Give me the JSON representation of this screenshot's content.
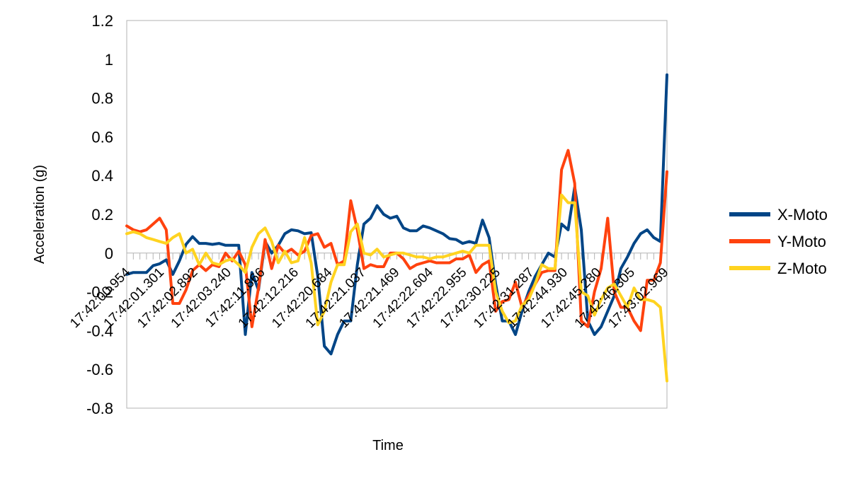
{
  "chart_data": {
    "type": "line",
    "xlabel": "Time",
    "ylabel": "Acceleration (g)",
    "ylim": [
      -0.8,
      1.2
    ],
    "yticks": [
      "1.2",
      "1",
      "0.8",
      "0.6",
      "0.4",
      "0.2",
      "0",
      "-0.2",
      "-0.4",
      "-0.6",
      "-0.8"
    ],
    "x_tick_labels": [
      "17:42:00.954",
      "17:42:01.301",
      "17:42:02.892",
      "17:42:03.240",
      "17:42:11.866",
      "17:42:12.216",
      "17:42:20.684",
      "17:42:21.037",
      "17:42:21.469",
      "17:42:22.604",
      "17:42:22.955",
      "17:42:30.225",
      "17:42:31.287",
      "17:42:44.930",
      "17:42:45.280",
      "17:42:46.305",
      "17:43:02.969"
    ],
    "grid": "none",
    "legend_position": "right",
    "series": [
      {
        "name": "X-Moto",
        "color": "#004586",
        "values": [
          -0.11,
          -0.1,
          -0.1,
          -0.1,
          -0.065,
          -0.055,
          -0.035,
          -0.11,
          -0.04,
          0.045,
          0.085,
          0.05,
          0.05,
          0.045,
          0.05,
          0.04,
          0.04,
          0.04,
          -0.42,
          -0.1,
          -0.19,
          0.06,
          0.0,
          0.04,
          0.1,
          0.12,
          0.115,
          0.1,
          0.105,
          -0.12,
          -0.48,
          -0.52,
          -0.42,
          -0.35,
          -0.35,
          -0.06,
          0.15,
          0.18,
          0.245,
          0.2,
          0.18,
          0.19,
          0.13,
          0.115,
          0.115,
          0.14,
          0.13,
          0.115,
          0.1,
          0.075,
          0.07,
          0.05,
          0.06,
          0.05,
          0.17,
          0.08,
          -0.16,
          -0.35,
          -0.35,
          -0.42,
          -0.3,
          -0.2,
          -0.12,
          -0.06,
          0.0,
          -0.02,
          0.15,
          0.12,
          0.34,
          0.12,
          -0.35,
          -0.42,
          -0.38,
          -0.3,
          -0.22,
          -0.08,
          -0.02,
          0.05,
          0.1,
          0.12,
          0.08,
          0.06,
          0.92
        ]
      },
      {
        "name": "Y-Moto",
        "color": "#ff420e",
        "values": [
          0.14,
          0.12,
          0.11,
          0.12,
          0.15,
          0.18,
          0.12,
          -0.26,
          -0.26,
          -0.19,
          -0.09,
          -0.06,
          -0.09,
          -0.06,
          -0.07,
          0.0,
          -0.04,
          0.01,
          -0.06,
          -0.38,
          -0.18,
          0.07,
          -0.08,
          0.04,
          0.0,
          0.02,
          -0.01,
          0.01,
          0.09,
          0.1,
          0.03,
          0.05,
          -0.06,
          -0.04,
          0.27,
          0.12,
          -0.08,
          -0.06,
          -0.07,
          -0.07,
          0.0,
          0.0,
          -0.03,
          -0.08,
          -0.06,
          -0.05,
          -0.04,
          -0.05,
          -0.05,
          -0.05,
          -0.03,
          -0.03,
          -0.01,
          -0.1,
          -0.06,
          -0.04,
          -0.3,
          -0.25,
          -0.24,
          -0.15,
          -0.28,
          -0.22,
          -0.16,
          -0.1,
          -0.09,
          -0.09,
          0.43,
          0.53,
          0.36,
          -0.35,
          -0.38,
          -0.2,
          -0.08,
          0.18,
          -0.2,
          -0.28,
          -0.28,
          -0.35,
          -0.4,
          -0.14,
          -0.14,
          -0.05,
          0.42
        ]
      },
      {
        "name": "Z-Moto",
        "color": "#ffd320",
        "values": [
          0.1,
          0.11,
          0.1,
          0.08,
          0.07,
          0.06,
          0.05,
          0.08,
          0.1,
          0.0,
          0.02,
          -0.06,
          0.0,
          -0.05,
          -0.06,
          -0.04,
          -0.03,
          -0.06,
          -0.1,
          0.03,
          0.1,
          0.13,
          0.06,
          -0.05,
          0.01,
          -0.05,
          -0.04,
          0.08,
          -0.05,
          -0.37,
          -0.3,
          -0.15,
          -0.06,
          -0.06,
          0.11,
          0.15,
          0.0,
          -0.01,
          0.02,
          -0.02,
          -0.01,
          0.0,
          0.0,
          -0.01,
          -0.02,
          -0.02,
          -0.03,
          -0.02,
          -0.02,
          -0.01,
          0.0,
          0.01,
          0.0,
          0.04,
          0.04,
          0.04,
          -0.2,
          -0.3,
          -0.36,
          -0.35,
          -0.27,
          -0.24,
          -0.16,
          -0.06,
          -0.08,
          -0.08,
          0.3,
          0.26,
          0.26,
          -0.2,
          -0.22,
          -0.32,
          -0.24,
          -0.18,
          -0.16,
          -0.22,
          -0.28,
          -0.18,
          -0.24,
          -0.24,
          -0.25,
          -0.28,
          -0.66
        ]
      }
    ]
  }
}
